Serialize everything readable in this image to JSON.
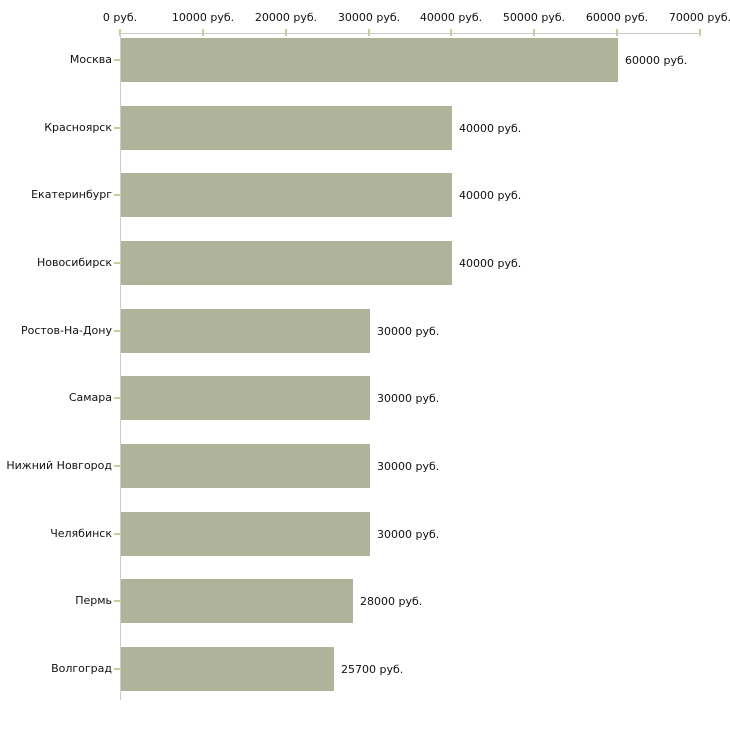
{
  "chart_data": {
    "type": "bar",
    "orientation": "horizontal",
    "title": "",
    "categories": [
      "Москва",
      "Красноярск",
      "Екатеринбург",
      "Новосибирск",
      "Ростов-На-Дону",
      "Самара",
      "Нижний Новгород",
      "Челябинск",
      "Пермь",
      "Волгоград"
    ],
    "values": [
      60000,
      40000,
      40000,
      40000,
      30000,
      30000,
      30000,
      30000,
      28000,
      25700
    ],
    "value_labels": [
      "60000 руб.",
      "40000 руб.",
      "40000 руб.",
      "40000 руб.",
      "30000 руб.",
      "30000 руб.",
      "30000 руб.",
      "30000 руб.",
      "28000 руб.",
      "25700 руб."
    ],
    "x_axis": {
      "position": "top",
      "min": 0,
      "max": 70000,
      "tick_interval": 10000,
      "tick_labels": [
        "0 руб.",
        "10000 руб.",
        "20000 руб.",
        "30000 руб.",
        "40000 руб.",
        "50000 руб.",
        "60000 руб.",
        "70000 руб."
      ]
    },
    "grid": false,
    "legend": false,
    "colors": {
      "bar": "#aeb39a",
      "axis_line": "#cccccc",
      "tick_mark": "#cccc99",
      "text": "#111111",
      "background": "#ffffff"
    }
  }
}
